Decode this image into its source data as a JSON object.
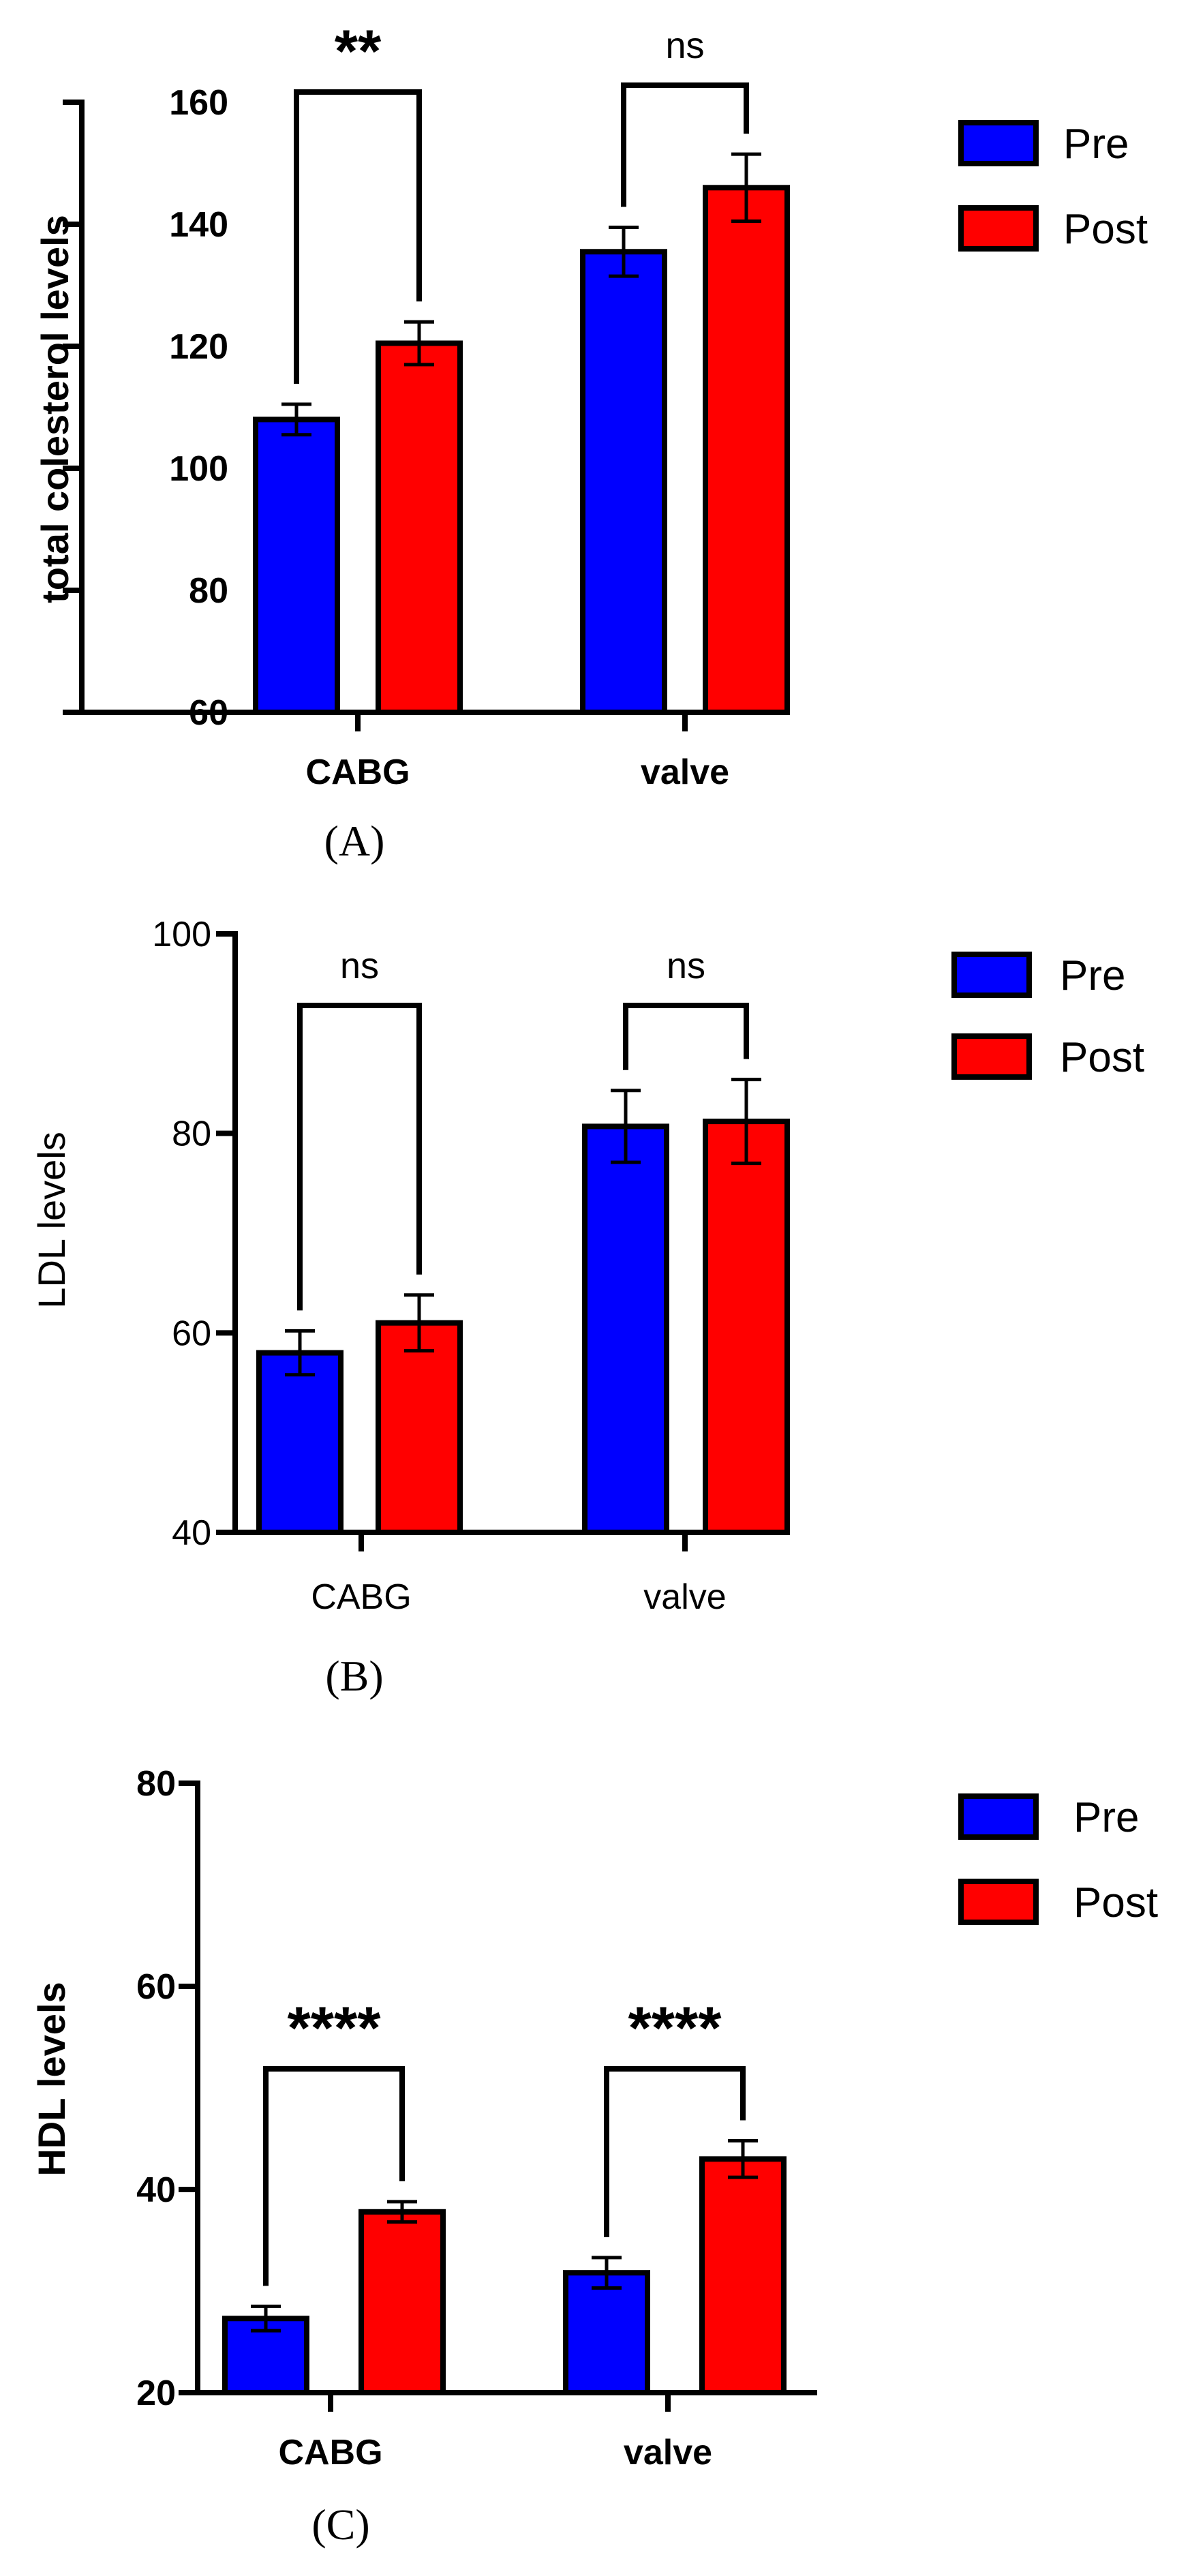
{
  "chart_data": [
    {
      "type": "bar",
      "panel_label": "(A)",
      "title": "",
      "xlabel": "",
      "ylabel": "total colesterol levels",
      "ylim": [
        60,
        160
      ],
      "yticks": [
        60,
        80,
        100,
        120,
        140,
        160
      ],
      "categories": [
        "CABG",
        "valve"
      ],
      "series": [
        {
          "name": "Pre",
          "color": "#0000ff",
          "values": [
            108,
            135.5
          ],
          "errors": [
            2.5,
            4
          ]
        },
        {
          "name": "Post",
          "color": "#ff0000",
          "values": [
            120.5,
            146
          ],
          "errors": [
            3.5,
            5.5
          ]
        }
      ],
      "significance": [
        "**",
        "ns"
      ],
      "legend_position": "top-right",
      "bold_labels": true
    },
    {
      "type": "bar",
      "panel_label": "(B)",
      "title": "",
      "xlabel": "",
      "ylabel": "LDL levels",
      "ylim": [
        40,
        100
      ],
      "yticks": [
        40,
        60,
        80,
        100
      ],
      "categories": [
        "CABG",
        "valve"
      ],
      "series": [
        {
          "name": "Pre",
          "color": "#0000ff",
          "values": [
            58,
            80.7
          ],
          "errors": [
            2.2,
            3.6
          ]
        },
        {
          "name": "Post",
          "color": "#ff0000",
          "values": [
            61,
            81.2
          ],
          "errors": [
            2.8,
            4.2
          ]
        }
      ],
      "significance": [
        "ns",
        "ns"
      ],
      "legend_position": "top-right",
      "bold_labels": false
    },
    {
      "type": "bar",
      "panel_label": "(C)",
      "title": "",
      "xlabel": "",
      "ylabel": "HDL levels",
      "ylim": [
        20,
        80
      ],
      "yticks": [
        20,
        40,
        60,
        80
      ],
      "categories": [
        "CABG",
        "valve"
      ],
      "series": [
        {
          "name": "Pre",
          "color": "#0000ff",
          "values": [
            27.3,
            31.8
          ],
          "errors": [
            1.2,
            1.5
          ]
        },
        {
          "name": "Post",
          "color": "#ff0000",
          "values": [
            37.8,
            43
          ],
          "errors": [
            1,
            1.8
          ]
        }
      ],
      "significance": [
        "****",
        "****"
      ],
      "legend_position": "top-right",
      "bold_labels": true
    }
  ]
}
